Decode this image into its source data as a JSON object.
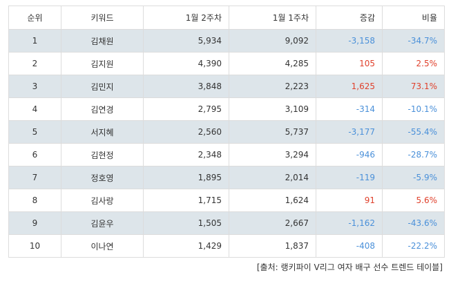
{
  "table": {
    "headers": {
      "rank": "순위",
      "keyword": "키워드",
      "week2": "1월 2주차",
      "week1": "1월 1주차",
      "change": "증감",
      "ratio": "비율"
    },
    "rows": [
      {
        "rank": "1",
        "keyword": "김채원",
        "week2": "5,934",
        "week1": "9,092",
        "change": "-3,158",
        "ratio": "-34.7%",
        "trend": "neg"
      },
      {
        "rank": "2",
        "keyword": "김지원",
        "week2": "4,390",
        "week1": "4,285",
        "change": "105",
        "ratio": "2.5%",
        "trend": "pos"
      },
      {
        "rank": "3",
        "keyword": "김민지",
        "week2": "3,848",
        "week1": "2,223",
        "change": "1,625",
        "ratio": "73.1%",
        "trend": "pos"
      },
      {
        "rank": "4",
        "keyword": "김연경",
        "week2": "2,795",
        "week1": "3,109",
        "change": "-314",
        "ratio": "-10.1%",
        "trend": "neg"
      },
      {
        "rank": "5",
        "keyword": "서지혜",
        "week2": "2,560",
        "week1": "5,737",
        "change": "-3,177",
        "ratio": "-55.4%",
        "trend": "neg"
      },
      {
        "rank": "6",
        "keyword": "김현정",
        "week2": "2,348",
        "week1": "3,294",
        "change": "-946",
        "ratio": "-28.7%",
        "trend": "neg"
      },
      {
        "rank": "7",
        "keyword": "정호영",
        "week2": "1,895",
        "week1": "2,014",
        "change": "-119",
        "ratio": "-5.9%",
        "trend": "neg"
      },
      {
        "rank": "8",
        "keyword": "김사랑",
        "week2": "1,715",
        "week1": "1,624",
        "change": "91",
        "ratio": "5.6%",
        "trend": "pos"
      },
      {
        "rank": "9",
        "keyword": "김윤우",
        "week2": "1,505",
        "week1": "2,667",
        "change": "-1,162",
        "ratio": "-43.6%",
        "trend": "neg"
      },
      {
        "rank": "10",
        "keyword": "이나연",
        "week2": "1,429",
        "week1": "1,837",
        "change": "-408",
        "ratio": "-22.2%",
        "trend": "neg"
      }
    ]
  },
  "source": "[출처: 랭키파이 V리그 여자 배구 선수 트렌드 테이블]",
  "colors": {
    "negative": "#4a90d9",
    "positive": "#e0412c",
    "row_shade": "#dde5ea",
    "border": "#dcdcdc"
  }
}
